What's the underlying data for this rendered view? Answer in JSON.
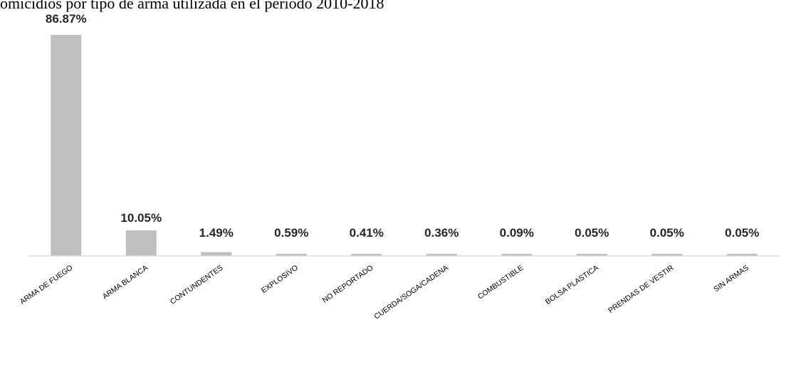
{
  "chart_data": {
    "type": "bar",
    "title": "omicidios por tipo de arma utilizada en el periodo 2010-2018",
    "categories": [
      "ARMA DE FUEGO",
      "ARMA BLANCA",
      "CONTUNDENTES",
      "EXPLOSIVO",
      "NO REPORTADO",
      "CUERDA/SOGA/CADENA",
      "COMBUSTIBLE",
      "BOLSA PLASTICA",
      "PRENDAS DE VESTIR",
      "SIN ARMAS"
    ],
    "values": [
      86.87,
      10.05,
      1.49,
      0.59,
      0.41,
      0.36,
      0.09,
      0.05,
      0.05,
      0.05
    ],
    "data_labels": [
      "86.87%",
      "10.05%",
      "1.49%",
      "0.59%",
      "0.41%",
      "0.36%",
      "0.09%",
      "0.05%",
      "0.05%",
      "0.05%"
    ],
    "xlabel": "",
    "ylabel": "",
    "ylim": [
      0,
      100
    ],
    "grid": false,
    "bar_color": "#bfbfbf",
    "axis_color": "#d9d9d9"
  }
}
